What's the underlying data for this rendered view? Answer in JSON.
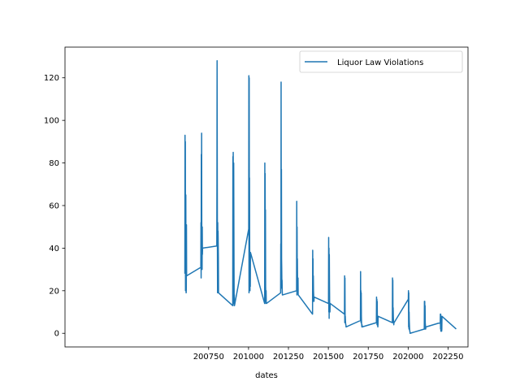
{
  "chart_data": {
    "type": "line",
    "title": "",
    "xlabel": "dates",
    "ylabel": "",
    "xlim": [
      199850,
      202375
    ],
    "ylim": [
      -6.4,
      134.4
    ],
    "xticks": [
      200750,
      201000,
      201250,
      201500,
      201750,
      202000,
      202250
    ],
    "xtick_labels": [
      "200750",
      "201000",
      "201250",
      "201500",
      "201750",
      "202000",
      "202250"
    ],
    "yticks": [
      0,
      20,
      40,
      60,
      80,
      100,
      120
    ],
    "ytick_labels": [
      "0",
      "20",
      "40",
      "60",
      "80",
      "100",
      "120"
    ],
    "grid": false,
    "legend": "upper right",
    "color": "#1f77b4",
    "series": [
      {
        "name": "Liquor Law Violations",
        "x": [
          200601,
          200602,
          200603,
          200604,
          200605,
          200606,
          200607,
          200608,
          200609,
          200610,
          200611,
          200612,
          200701,
          200702,
          200703,
          200704,
          200705,
          200706,
          200707,
          200708,
          200709,
          200710,
          200711,
          200712,
          200801,
          200802,
          200803,
          200804,
          200805,
          200806,
          200807,
          200808,
          200809,
          200810,
          200811,
          200812,
          200901,
          200902,
          200903,
          200904,
          200905,
          200906,
          200907,
          200908,
          200909,
          200910,
          200911,
          200912,
          201001,
          201002,
          201003,
          201004,
          201005,
          201006,
          201007,
          201008,
          201009,
          201010,
          201011,
          201012,
          201101,
          201102,
          201103,
          201104,
          201105,
          201106,
          201107,
          201108,
          201109,
          201110,
          201111,
          201112,
          201201,
          201202,
          201203,
          201204,
          201205,
          201206,
          201207,
          201208,
          201209,
          201210,
          201211,
          201212,
          201301,
          201302,
          201303,
          201304,
          201305,
          201306,
          201307,
          201308,
          201309,
          201310,
          201311,
          201312,
          201401,
          201402,
          201403,
          201404,
          201405,
          201406,
          201407,
          201408,
          201409,
          201410,
          201411,
          201412,
          201501,
          201502,
          201503,
          201504,
          201505,
          201506,
          201507,
          201508,
          201509,
          201510,
          201511,
          201512,
          201601,
          201602,
          201603,
          201604,
          201605,
          201606,
          201607,
          201608,
          201609,
          201610,
          201611,
          201612,
          201701,
          201702,
          201703,
          201704,
          201705,
          201706,
          201707,
          201708,
          201709,
          201710,
          201711,
          201712,
          201801,
          201802,
          201803,
          201804,
          201805,
          201806,
          201807,
          201808,
          201809,
          201810,
          201811,
          201812,
          201901,
          201902,
          201903,
          201904,
          201905,
          201906,
          201907,
          201908,
          201909,
          201910,
          201911,
          201912,
          202001,
          202002,
          202003,
          202004,
          202005,
          202006,
          202007,
          202008,
          202009,
          202010,
          202011,
          202012,
          202101,
          202102,
          202103,
          202104,
          202105,
          202106,
          202107,
          202108,
          202109,
          202110,
          202111,
          202112,
          202201,
          202202,
          202203,
          202204,
          202205,
          202206,
          202207,
          202208,
          202209,
          202210,
          202211,
          202212,
          202301
        ],
        "values": [
          28,
          93,
          45,
          90,
          20,
          38,
          65,
          26,
          19,
          21,
          51,
          27,
          31,
          52,
          26,
          84,
          30,
          94,
          46,
          35,
          30,
          50,
          37,
          40,
          41,
          71,
          128,
          80,
          40,
          19,
          52,
          41,
          48,
          42,
          36,
          19,
          13,
          83,
          28,
          85,
          36,
          14,
          80,
          55,
          30,
          13,
          18,
          13,
          49,
          121,
          19,
          120,
          60,
          73,
          41,
          30,
          20,
          35,
          22,
          38,
          14,
          80,
          14,
          75,
          30,
          58,
          22,
          18,
          15,
          20,
          14,
          14,
          19,
          42,
          21,
          118,
          50,
          77,
          35,
          30,
          22,
          25,
          20,
          18,
          20,
          62,
          18,
          50,
          30,
          35,
          25,
          22,
          20,
          26,
          18,
          18,
          9,
          39,
          17,
          35,
          15,
          27,
          20,
          18,
          16,
          15,
          17,
          17,
          14,
          45,
          10,
          40,
          7,
          37,
          25,
          15,
          12,
          10,
          13,
          14,
          9,
          27,
          5,
          26,
          8,
          8,
          6,
          5,
          4,
          4,
          3,
          3,
          6,
          29,
          7,
          20,
          5,
          19,
          8,
          5,
          4,
          3,
          4,
          3,
          5,
          17,
          6,
          16,
          4,
          15,
          7,
          5,
          4,
          3,
          4,
          8,
          5,
          26,
          6,
          25,
          5,
          12,
          8,
          6,
          5,
          4,
          5,
          5,
          16,
          20,
          3,
          19,
          2,
          10,
          6,
          4,
          2,
          1,
          1,
          0,
          2,
          15,
          3,
          15,
          2,
          13,
          5,
          4,
          3,
          2,
          3,
          3,
          5,
          9,
          2,
          9,
          1,
          8,
          4,
          3,
          2,
          1,
          2,
          8,
          2
        ]
      }
    ]
  }
}
